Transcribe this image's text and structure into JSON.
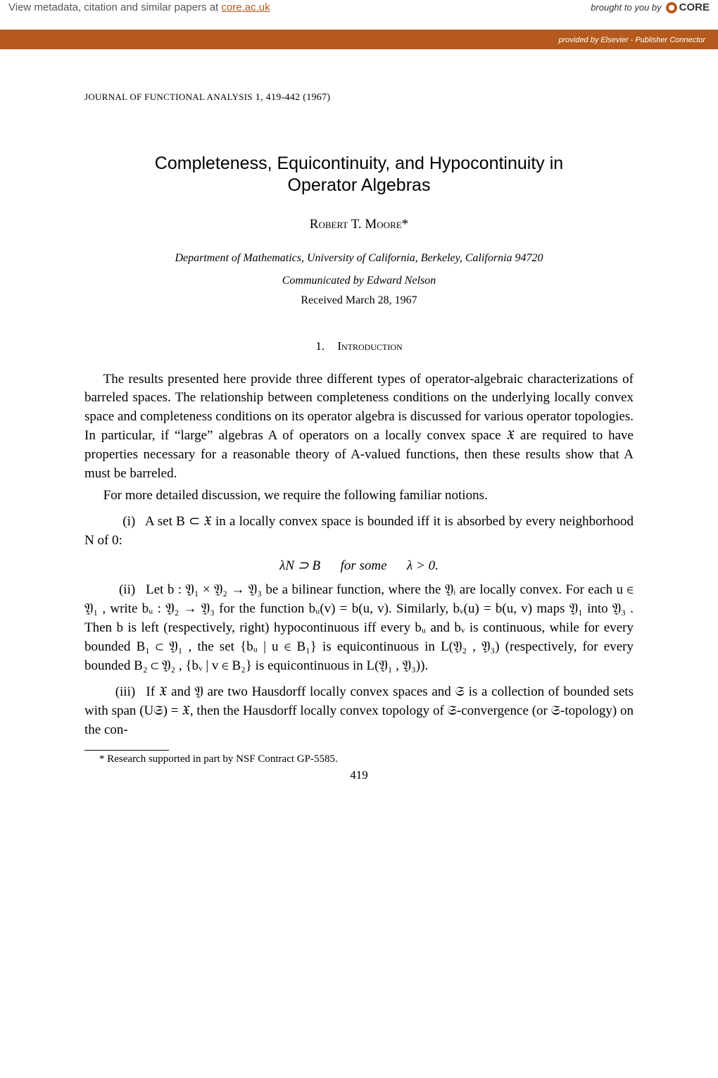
{
  "banner": {
    "left_prefix": "View metadata, citation and similar papers at ",
    "core_link": "core.ac.uk",
    "brought": "brought to you by",
    "logo_text": "CORE",
    "provided_prefix": "provided by ",
    "provider": "Elsevier - Publisher Connector"
  },
  "journal": {
    "name": "JOURNAL OF FUNCTIONAL ANALYSIS",
    "vol_pages": "1, 419-442 (1967)"
  },
  "title_line1": "Completeness, Equicontinuity, and Hypocontinuity in",
  "title_line2": "Operator Algebras",
  "author": "Robert T. Moore*",
  "affiliation": "Department of Mathematics, University of California, Berkeley, California 94720",
  "communicated": "Communicated by Edward Nelson",
  "received": "Received March 28, 1967",
  "section": {
    "num": "1.",
    "heading": "Introduction"
  },
  "p1": "The results presented here provide three different types of operator-algebraic characterizations of barreled spaces. The relationship between completeness conditions on the underlying locally convex space and completeness conditions on its operator algebra is discussed for various operator topologies. In particular, if “large” algebras A of operators on a locally convex space 𝔛 are required to have properties necessary for a reasonable theory of A-valued functions, then these results show that A must be barreled.",
  "p2": "For more detailed discussion, we require the following familiar notions.",
  "li1_label": "(i)",
  "li1": "A set B ⊂ 𝔛 in a locally convex space is bounded iff it is absorbed by every neighborhood N of 0:",
  "eq1": "λN ⊃ B   for some   λ > 0.",
  "li2_label": "(ii)",
  "li2": "Let b : 𝔜₁ × 𝔜₂ → 𝔜₃ be a bilinear function, where the 𝔜ᵢ are locally convex. For each u ∈ 𝔜₁ , write bᵤ : 𝔜₂ → 𝔜₃ for the function bᵤ(v) = b(u, v). Similarly, bᵥ(u) = b(u, v) maps 𝔜₁ into 𝔜₃ . Then b is left (respectively, right) hypocontinuous iff every bᵤ and bᵥ is continuous, while for every bounded B₁ ⊂ 𝔜₁ , the set {bᵤ | u ∈ B₁} is equicontinuous in L(𝔜₂ , 𝔜₃) (respectively, for every bounded B₂ ⊂ 𝔜₂ , {bᵥ | v ∈ B₂} is equicontinuous in L(𝔜₁ , 𝔜₃)).",
  "li3_label": "(iii)",
  "li3": "If 𝔛 and 𝔜 are two Hausdorff locally convex spaces and 𝔖 is a collection of bounded sets with span (U𝔖) = 𝔛, then the Hausdorff locally convex topology of 𝔖-convergence (or 𝔖-topology) on the con-",
  "footnote": "* Research supported in part by NSF Contract GP-5585.",
  "page_num": "419",
  "colors": {
    "accent": "#b55a1c",
    "text": "#000000",
    "background": "#ffffff",
    "banner_text": "#555555"
  },
  "typography": {
    "body_font": "Georgia, Times New Roman, serif",
    "title_font": "Arial, Helvetica, sans-serif",
    "body_size_pt": 19,
    "title_size_pt": 25,
    "footnote_size_pt": 15
  }
}
